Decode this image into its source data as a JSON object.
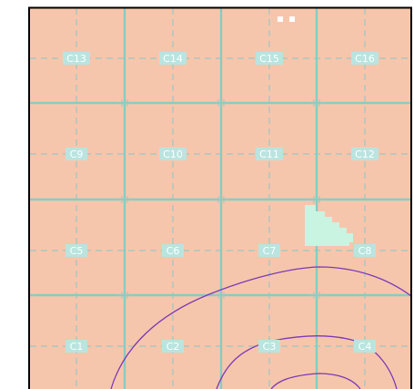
{
  "map": {
    "colors": {
      "background": "#f6c6ac",
      "frame": "#000000",
      "grid_major": "#86ccc4",
      "grid_minor": "#9cc7c3",
      "label_box": "#b9e4df",
      "label_text": "#ffffff",
      "highlight": "#c8f4e1",
      "contour": "#7b39b7",
      "marker": "#ffffff"
    },
    "cells": [
      {
        "id": "C13"
      },
      {
        "id": "C14"
      },
      {
        "id": "C15"
      },
      {
        "id": "C16"
      },
      {
        "id": "C9"
      },
      {
        "id": "C10"
      },
      {
        "id": "C11"
      },
      {
        "id": "C12"
      },
      {
        "id": "C5"
      },
      {
        "id": "C6"
      },
      {
        "id": "C7"
      },
      {
        "id": "C8"
      },
      {
        "id": "C1"
      },
      {
        "id": "C2"
      },
      {
        "id": "C3"
      },
      {
        "id": "C4"
      }
    ]
  }
}
